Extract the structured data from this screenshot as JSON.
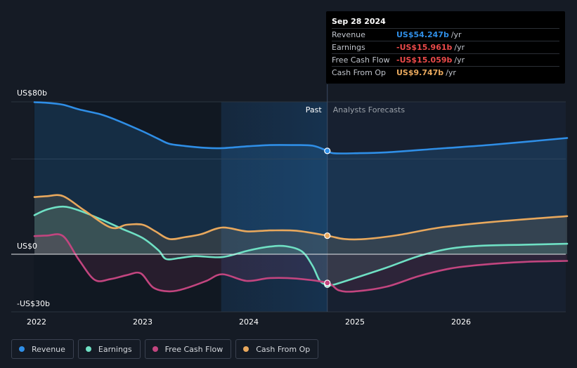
{
  "chart_data": {
    "type": "area",
    "title": "",
    "xlabel": "",
    "ylabel": "",
    "y_unit": "US$ billions",
    "ylim": [
      -30,
      80
    ],
    "y_tick_labels": [
      {
        "value": 80,
        "label": "US$80b"
      },
      {
        "value": 0,
        "label": "US$0"
      },
      {
        "value": -30,
        "label": "-US$30b"
      }
    ],
    "x_ticks": [
      2022,
      2023,
      2024,
      2025,
      2026
    ],
    "xlim": [
      2021.98,
      2027.0
    ],
    "past_label": "Past",
    "forecast_label": "Analysts Forecasts",
    "highlight_start": 2023.74,
    "divider_x": 2024.74,
    "series": [
      {
        "name": "Revenue",
        "color": "#2f8ee6",
        "points": [
          [
            2021.98,
            79.8
          ],
          [
            2022.1,
            79.5
          ],
          [
            2022.25,
            78.5
          ],
          [
            2022.4,
            76.0
          ],
          [
            2022.6,
            73.5
          ],
          [
            2022.75,
            70.5
          ],
          [
            2023.0,
            64.5
          ],
          [
            2023.15,
            60.5
          ],
          [
            2023.25,
            58.0
          ],
          [
            2023.4,
            56.8
          ],
          [
            2023.6,
            55.8
          ],
          [
            2023.75,
            55.7
          ],
          [
            2024.0,
            56.7
          ],
          [
            2024.2,
            57.3
          ],
          [
            2024.4,
            57.3
          ],
          [
            2024.6,
            57.0
          ],
          [
            2024.74,
            54.247
          ],
          [
            2024.8,
            53.0
          ],
          [
            2025.0,
            53.0
          ],
          [
            2025.3,
            53.5
          ],
          [
            2025.8,
            55.5
          ],
          [
            2026.3,
            57.5
          ],
          [
            2027.0,
            61.0
          ]
        ]
      },
      {
        "name": "Earnings",
        "color": "#6fe0c4",
        "points": [
          [
            2021.98,
            20.5
          ],
          [
            2022.1,
            23.5
          ],
          [
            2022.25,
            25.0
          ],
          [
            2022.4,
            23.0
          ],
          [
            2022.6,
            18.5
          ],
          [
            2022.8,
            13.5
          ],
          [
            2023.0,
            8.5
          ],
          [
            2023.15,
            2.0
          ],
          [
            2023.22,
            -2.5
          ],
          [
            2023.35,
            -2.0
          ],
          [
            2023.5,
            -1.0
          ],
          [
            2023.75,
            -1.5
          ],
          [
            2024.0,
            2.0
          ],
          [
            2024.2,
            4.0
          ],
          [
            2024.35,
            4.2
          ],
          [
            2024.5,
            1.5
          ],
          [
            2024.6,
            -6.0
          ],
          [
            2024.67,
            -14.0
          ],
          [
            2024.74,
            -15.961
          ],
          [
            2024.8,
            -16.0
          ],
          [
            2025.0,
            -12.5
          ],
          [
            2025.3,
            -7.0
          ],
          [
            2025.6,
            -1.0
          ],
          [
            2025.9,
            3.0
          ],
          [
            2026.2,
            4.5
          ],
          [
            2026.6,
            5.0
          ],
          [
            2027.0,
            5.5
          ]
        ]
      },
      {
        "name": "Free Cash Flow",
        "color": "#c2457f",
        "points": [
          [
            2021.98,
            9.5
          ],
          [
            2022.1,
            9.8
          ],
          [
            2022.25,
            9.5
          ],
          [
            2022.4,
            -3.0
          ],
          [
            2022.55,
            -13.5
          ],
          [
            2022.7,
            -13.0
          ],
          [
            2022.85,
            -11.0
          ],
          [
            2022.98,
            -10.0
          ],
          [
            2023.1,
            -17.5
          ],
          [
            2023.25,
            -19.5
          ],
          [
            2023.4,
            -18.0
          ],
          [
            2023.6,
            -14.0
          ],
          [
            2023.75,
            -10.5
          ],
          [
            2023.98,
            -14.0
          ],
          [
            2024.2,
            -12.5
          ],
          [
            2024.45,
            -12.8
          ],
          [
            2024.74,
            -15.059
          ],
          [
            2024.85,
            -19.0
          ],
          [
            2025.0,
            -19.5
          ],
          [
            2025.3,
            -17.0
          ],
          [
            2025.6,
            -11.5
          ],
          [
            2025.9,
            -7.5
          ],
          [
            2026.2,
            -5.5
          ],
          [
            2026.6,
            -4.0
          ],
          [
            2027.0,
            -3.5
          ]
        ]
      },
      {
        "name": "Cash From Op",
        "color": "#e8a85d",
        "points": [
          [
            2021.98,
            30.0
          ],
          [
            2022.1,
            30.5
          ],
          [
            2022.25,
            30.5
          ],
          [
            2022.45,
            23.0
          ],
          [
            2022.7,
            14.0
          ],
          [
            2022.85,
            15.5
          ],
          [
            2023.0,
            15.5
          ],
          [
            2023.12,
            12.0
          ],
          [
            2023.25,
            8.0
          ],
          [
            2023.4,
            9.0
          ],
          [
            2023.55,
            10.5
          ],
          [
            2023.75,
            14.0
          ],
          [
            2023.98,
            12.0
          ],
          [
            2024.2,
            12.5
          ],
          [
            2024.45,
            12.3
          ],
          [
            2024.74,
            9.747
          ],
          [
            2024.9,
            8.0
          ],
          [
            2025.1,
            8.0
          ],
          [
            2025.4,
            10.0
          ],
          [
            2025.8,
            14.0
          ],
          [
            2026.3,
            17.0
          ],
          [
            2027.0,
            20.0
          ]
        ]
      }
    ]
  },
  "tooltip": {
    "date": "Sep 28 2024",
    "rows": [
      {
        "label": "Revenue",
        "value": "US$54.247b",
        "unit": "/yr",
        "color": "#2f8ee6"
      },
      {
        "label": "Earnings",
        "value": "-US$15.961b",
        "unit": "/yr",
        "color": "#ec4a4a"
      },
      {
        "label": "Free Cash Flow",
        "value": "-US$15.059b",
        "unit": "/yr",
        "color": "#ec4a4a"
      },
      {
        "label": "Cash From Op",
        "value": "US$9.747b",
        "unit": "/yr",
        "color": "#e8a85d"
      }
    ]
  },
  "legend": [
    {
      "label": "Revenue",
      "color": "#2f8ee6"
    },
    {
      "label": "Earnings",
      "color": "#6fe0c4"
    },
    {
      "label": "Free Cash Flow",
      "color": "#c2457f"
    },
    {
      "label": "Cash From Op",
      "color": "#e8a85d"
    }
  ]
}
